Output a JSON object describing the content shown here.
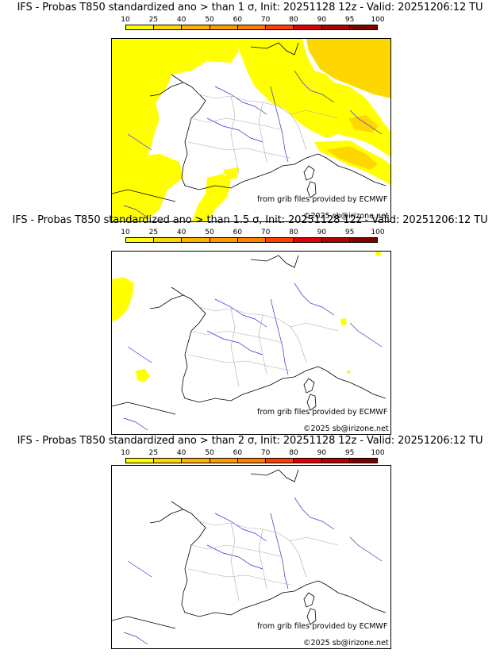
{
  "panels": [
    {
      "title": "IFS - Probas T850  standardized ano > than 1 σ, Init: 20251128 12z - Valid: 20251206:12 TU",
      "threshold": "1 sigma",
      "coverage": "high"
    },
    {
      "title": "IFS - Probas T850  standardized ano > than 1.5 σ, Init: 20251128 12z - Valid: 20251206:12 TU",
      "threshold": "1.5 sigma",
      "coverage": "low"
    },
    {
      "title": "IFS - Probas T850  standardized ano > than 2 σ, Init: 20251128 12z - Valid: 20251206:12 TU",
      "threshold": "2 sigma",
      "coverage": "none"
    }
  ],
  "colorbar": {
    "ticks": [
      "10",
      "25",
      "40",
      "50",
      "60",
      "70",
      "80",
      "90",
      "95",
      "100"
    ],
    "colors": [
      "#ffff00",
      "#ffd700",
      "#ffb000",
      "#ff9a00",
      "#ff7f00",
      "#ff3f00",
      "#e00000",
      "#b00000",
      "#800000"
    ]
  },
  "credits": {
    "source": "from grib files provided by ECMWF",
    "copyright": "©2025 sb@irizone.net"
  },
  "colors": {
    "coast": "#000000",
    "rivers": "#3333cc",
    "borders": "#aaaaaa",
    "yellow": "#ffff00",
    "gold": "#ffd700"
  }
}
